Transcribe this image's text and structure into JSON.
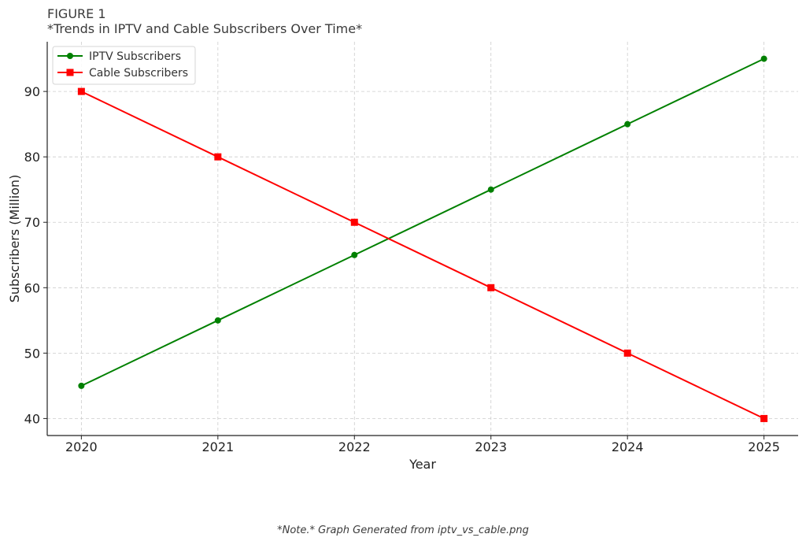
{
  "figure": {
    "label": "FIGURE 1",
    "title": "*Trends in IPTV and Cable Subscribers Over Time*",
    "note": "*Note.* Graph Generated from iptv_vs_cable.png"
  },
  "chart_data": {
    "type": "line",
    "xlabel": "Year",
    "ylabel": "Subscribers (Million)",
    "x": [
      2020,
      2021,
      2022,
      2023,
      2024,
      2025
    ],
    "xticks": [
      "2020",
      "2021",
      "2022",
      "2023",
      "2024",
      "2025"
    ],
    "yticks": [
      40,
      50,
      60,
      70,
      80,
      90
    ],
    "xlim": [
      2019.75,
      2025.25
    ],
    "ylim": [
      37.4,
      97.6
    ],
    "grid": true,
    "legend_position": "upper-left",
    "series": [
      {
        "name": "IPTV Subscribers",
        "values": [
          45,
          55,
          65,
          75,
          85,
          95
        ],
        "color": "#008000",
        "marker": "circle"
      },
      {
        "name": "Cable Subscribers",
        "values": [
          90,
          80,
          70,
          60,
          50,
          40
        ],
        "color": "#ff0000",
        "marker": "square"
      }
    ]
  }
}
